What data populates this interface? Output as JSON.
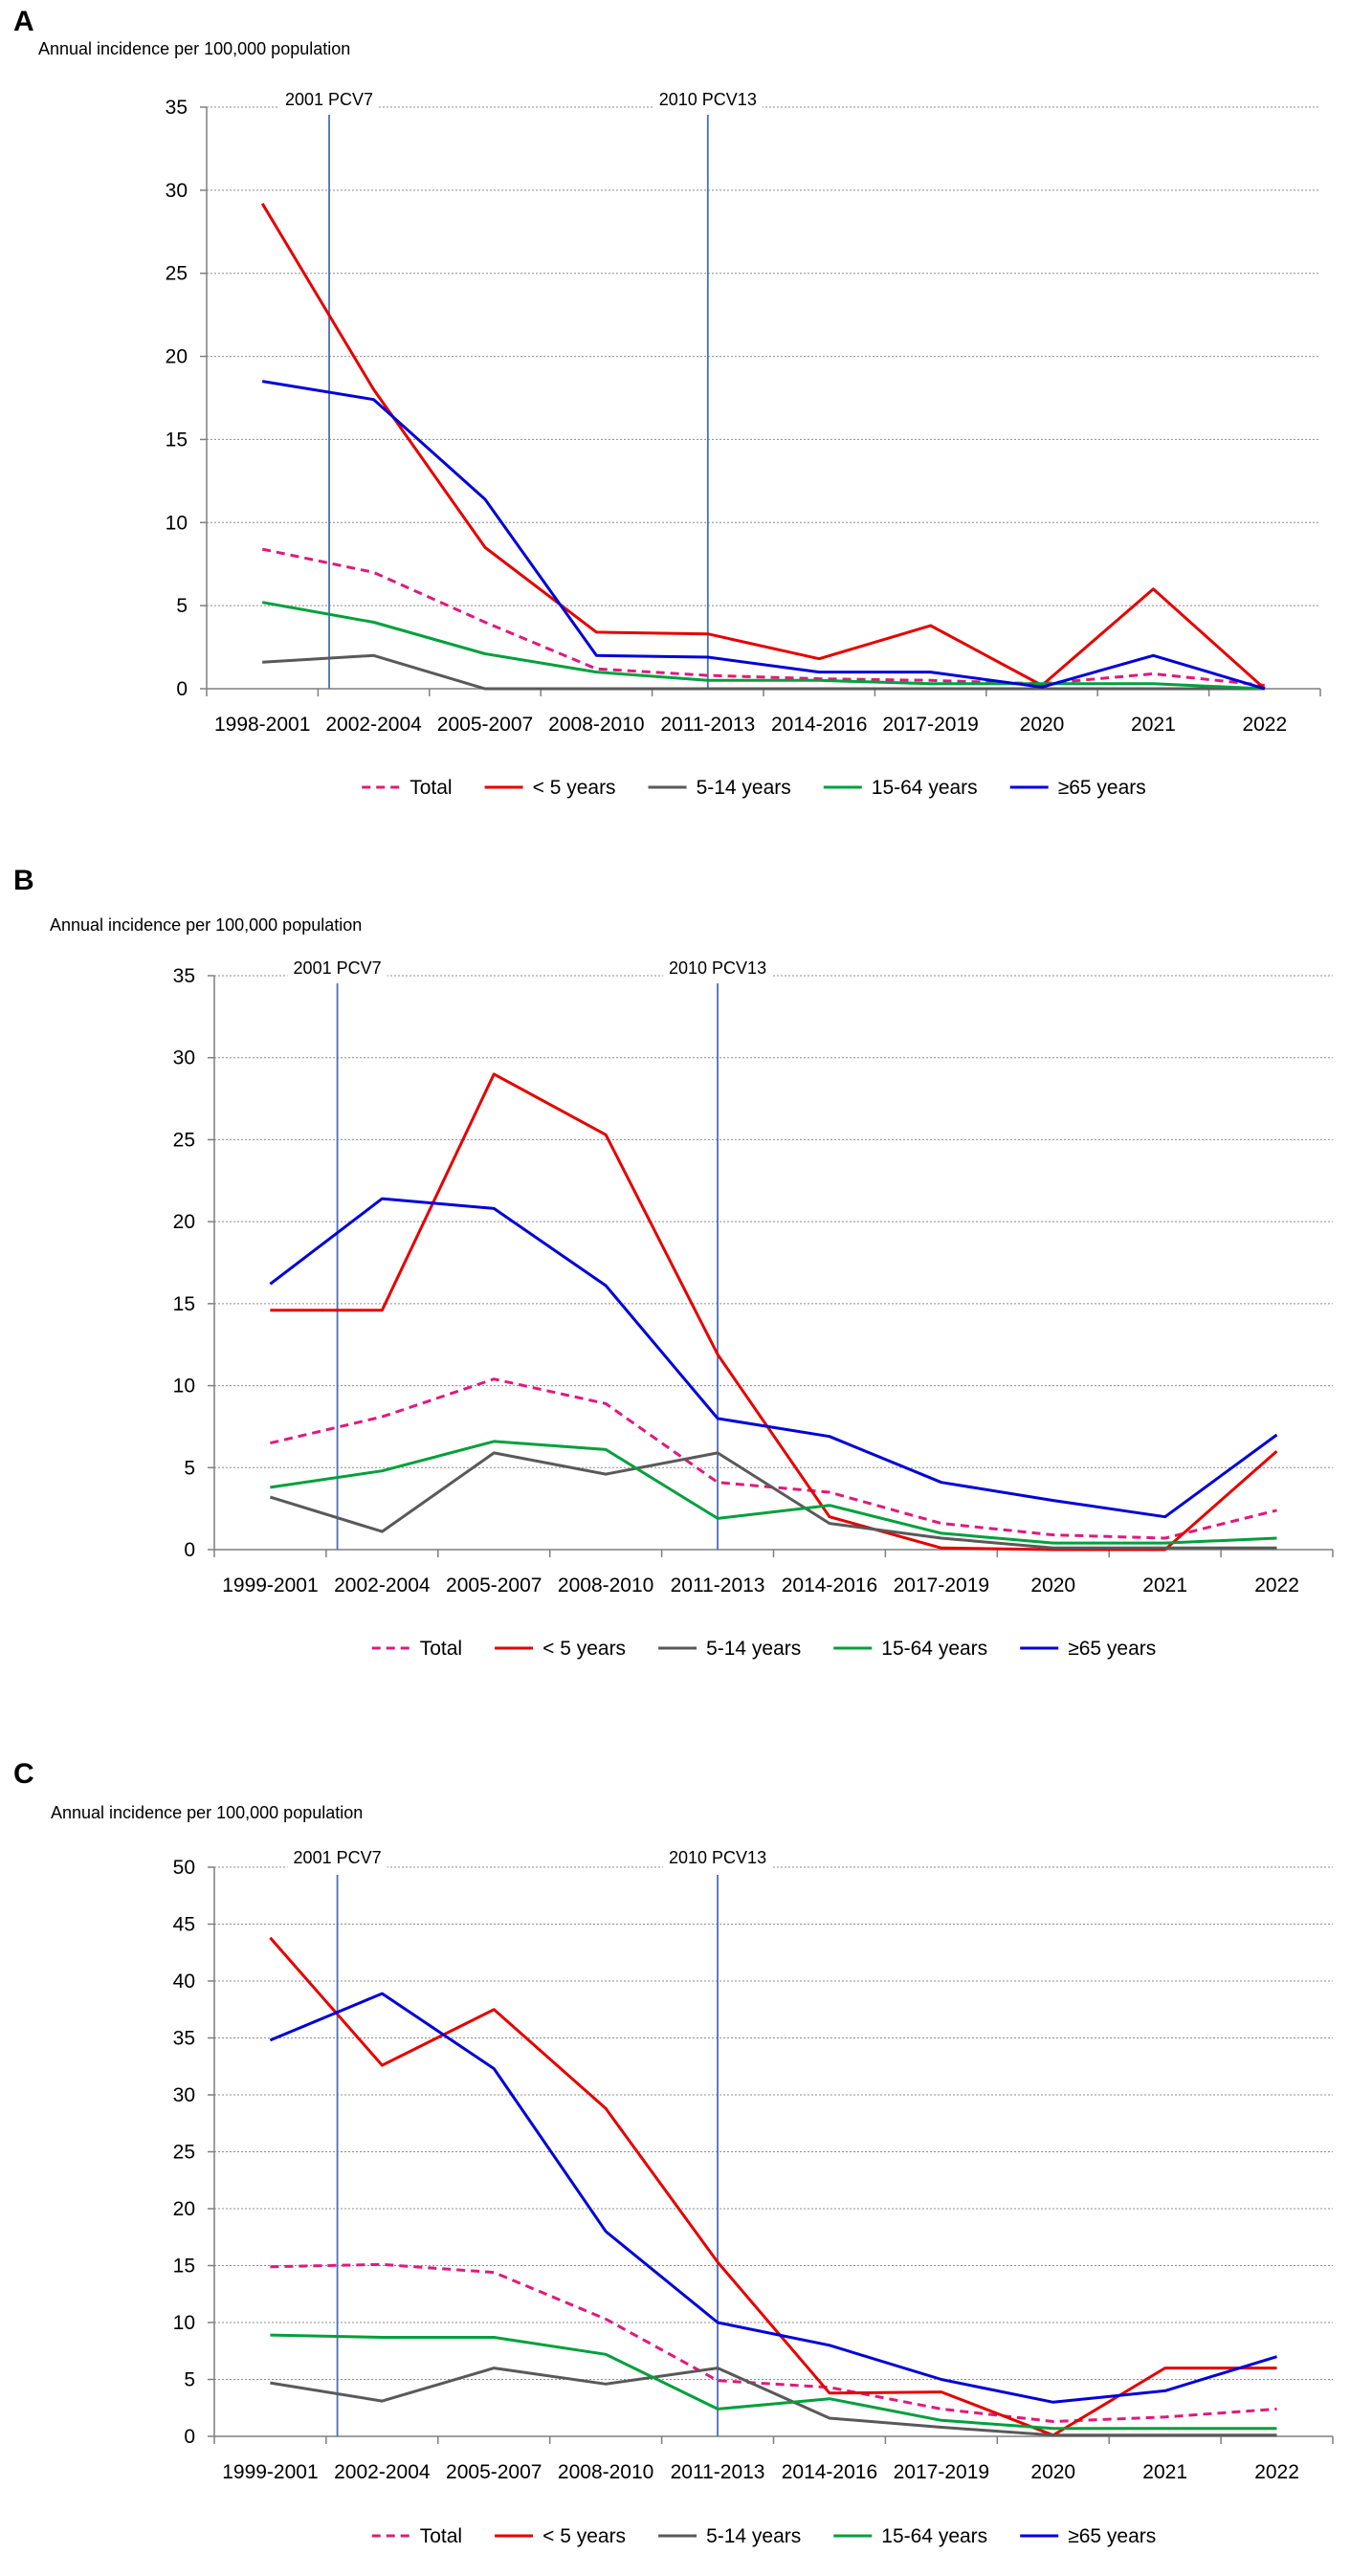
{
  "figure": {
    "interventions": [
      {
        "label": "2001 PCV7",
        "x": 0.6
      },
      {
        "label": "2010 PCV13",
        "x": 4.0
      }
    ],
    "legend": [
      {
        "name": "Total",
        "color": "#e0197e",
        "dash": true
      },
      {
        "name": "< 5 years",
        "color": "#e60000",
        "dash": false
      },
      {
        "name": "5-14 years",
        "color": "#595959",
        "dash": false
      },
      {
        "name": "15-64 years",
        "color": "#00a03c",
        "dash": false
      },
      {
        "name": "≥65 years",
        "color": "#0000d8",
        "dash": false
      }
    ]
  },
  "chart_data": [
    {
      "type": "line",
      "panel_label": "A",
      "ylabel": "Annual incidence per 100,000 population",
      "ylim": [
        0,
        35
      ],
      "yticks": [
        "0",
        "5",
        "10",
        "15",
        "20",
        "25",
        "30",
        "35"
      ],
      "categories": [
        "1998-2001",
        "2002-2004",
        "2005-2007",
        "2008-2010",
        "2011-2013",
        "2014-2016",
        "2017-2019",
        "2020",
        "2021",
        "2022"
      ],
      "series": [
        {
          "name": "Total",
          "values": [
            8.4,
            7.0,
            4.0,
            1.2,
            0.8,
            0.6,
            0.5,
            0.3,
            0.9,
            0.2
          ]
        },
        {
          "name": "< 5 years",
          "values": [
            29.2,
            18.0,
            8.5,
            3.4,
            3.3,
            1.8,
            3.8,
            0.2,
            6.0,
            0.0
          ]
        },
        {
          "name": "5-14 years",
          "values": [
            1.6,
            2.0,
            0.0,
            0.0,
            0.0,
            0.0,
            0.0,
            0.0,
            0.0,
            0.0
          ]
        },
        {
          "name": "15-64 years",
          "values": [
            5.2,
            4.0,
            2.1,
            1.0,
            0.5,
            0.5,
            0.3,
            0.3,
            0.3,
            0.0
          ]
        },
        {
          "name": "≥65 years",
          "values": [
            18.5,
            17.4,
            11.4,
            2.0,
            1.9,
            1.0,
            1.0,
            0.1,
            2.0,
            0.0
          ]
        }
      ]
    },
    {
      "type": "line",
      "panel_label": "B",
      "ylabel": "Annual incidence per 100,000 population",
      "ylim": [
        0,
        35
      ],
      "yticks": [
        "0",
        "5",
        "10",
        "15",
        "20",
        "25",
        "30",
        "35"
      ],
      "categories": [
        "1999-2001",
        "2002-2004",
        "2005-2007",
        "2008-2010",
        "2011-2013",
        "2014-2016",
        "2017-2019",
        "2020",
        "2021",
        "2022"
      ],
      "series": [
        {
          "name": "Total",
          "values": [
            6.5,
            8.1,
            10.4,
            8.9,
            4.1,
            3.5,
            1.6,
            0.9,
            0.7,
            2.4
          ]
        },
        {
          "name": "< 5 years",
          "values": [
            14.6,
            14.6,
            29.0,
            25.3,
            11.9,
            2.0,
            0.1,
            0.0,
            0.0,
            6.0
          ]
        },
        {
          "name": "5-14 years",
          "values": [
            3.2,
            1.1,
            5.9,
            4.6,
            5.9,
            1.6,
            0.7,
            0.1,
            0.1,
            0.1
          ]
        },
        {
          "name": "15-64 years",
          "values": [
            3.8,
            4.8,
            6.6,
            6.1,
            1.9,
            2.7,
            1.0,
            0.4,
            0.4,
            0.7
          ]
        },
        {
          "name": "≥65 years",
          "values": [
            16.2,
            21.4,
            20.8,
            16.1,
            8.0,
            6.9,
            4.1,
            3.0,
            2.0,
            7.0
          ]
        }
      ]
    },
    {
      "type": "line",
      "panel_label": "C",
      "ylabel": "Annual incidence per 100,000 population",
      "ylim": [
        0,
        50
      ],
      "yticks": [
        "0",
        "5",
        "10",
        "15",
        "20",
        "25",
        "30",
        "35",
        "40",
        "45",
        "50"
      ],
      "categories": [
        "1999-2001",
        "2002-2004",
        "2005-2007",
        "2008-2010",
        "2011-2013",
        "2014-2016",
        "2017-2019",
        "2020",
        "2021",
        "2022"
      ],
      "series": [
        {
          "name": "Total",
          "values": [
            14.9,
            15.1,
            14.4,
            10.3,
            4.9,
            4.3,
            2.4,
            1.3,
            1.7,
            2.4
          ]
        },
        {
          "name": "< 5 years",
          "values": [
            43.8,
            32.6,
            37.5,
            28.8,
            15.3,
            3.8,
            3.9,
            0.1,
            6.0,
            6.0
          ]
        },
        {
          "name": "5-14 years",
          "values": [
            4.7,
            3.1,
            6.0,
            4.6,
            6.0,
            1.6,
            0.8,
            0.1,
            0.1,
            0.1
          ]
        },
        {
          "name": "15-64 years",
          "values": [
            8.9,
            8.7,
            8.7,
            7.2,
            2.4,
            3.3,
            1.4,
            0.7,
            0.7,
            0.7
          ]
        },
        {
          "name": "≥65 years",
          "values": [
            34.8,
            38.9,
            32.3,
            18.0,
            10.0,
            8.0,
            5.0,
            3.0,
            4.0,
            7.0
          ]
        }
      ]
    }
  ]
}
